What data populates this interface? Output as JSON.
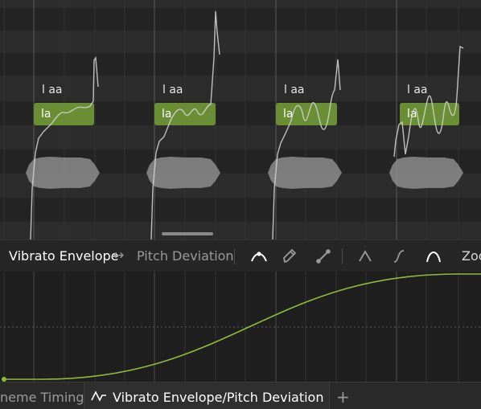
{
  "piano_roll": {
    "notes": [
      {
        "lyric": "la",
        "phonemes": "l aa"
      },
      {
        "lyric": "la",
        "phonemes": "l aa"
      },
      {
        "lyric": "la",
        "phonemes": "l aa"
      },
      {
        "lyric": "la",
        "phonemes": "l aa"
      }
    ]
  },
  "toolbar": {
    "vibrato_envelope_label": "Vibrato Envelope",
    "swap_symbol": "↔",
    "pitch_deviation_label": "Pitch Deviation",
    "zoom_label": "Zoo",
    "icons": [
      "curve-select-icon",
      "pencil-icon",
      "line-tool-icon",
      "sharp-curve-icon",
      "s-curve-icon",
      "smooth-curve-icon"
    ]
  },
  "parameter_curve": {
    "points": [
      [
        0,
        0.0
      ],
      [
        0.08,
        0.0
      ],
      [
        0.5,
        0.55
      ],
      [
        0.95,
        1.0
      ],
      [
        1.0,
        1.0
      ]
    ]
  },
  "tabs": [
    {
      "label": "neme Timing",
      "active": false
    },
    {
      "label": "Vibrato Envelope/Pitch Deviation",
      "active": true,
      "icon": "vibrato-wave-icon"
    }
  ],
  "add_tab_symbol": "+",
  "colors": {
    "note": "#6a8e33",
    "curve": "#8fbc3a",
    "active_tool": "#ffffff",
    "inactive_tool": "#9a9a9a"
  }
}
